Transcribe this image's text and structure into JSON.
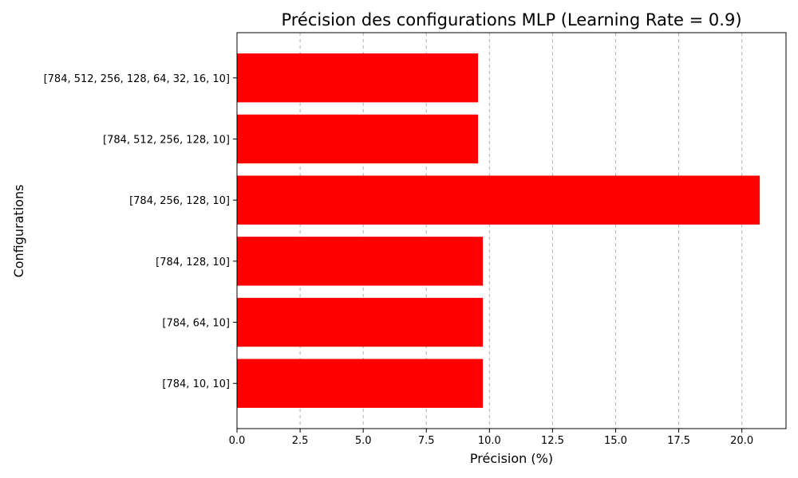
{
  "chart_data": {
    "type": "bar",
    "orientation": "horizontal",
    "title": "Précision des configurations MLP (Learning Rate = 0.9)",
    "xlabel": "Précision (%)",
    "ylabel": "Configurations",
    "categories": [
      "[784, 10, 10]",
      "[784, 64, 10]",
      "[784, 128, 10]",
      "[784, 256, 128, 10]",
      "[784, 512, 256, 128, 10]",
      "[784, 512, 256, 128, 64, 32, 16, 10]"
    ],
    "values": [
      9.74,
      9.74,
      9.74,
      20.71,
      9.55,
      9.55
    ],
    "xlim": [
      0,
      21.75
    ],
    "xticks": [
      0.0,
      2.5,
      5.0,
      7.5,
      10.0,
      12.5,
      15.0,
      17.5,
      20.0
    ],
    "xtick_labels": [
      "0.0",
      "2.5",
      "5.0",
      "7.5",
      "10.0",
      "12.5",
      "15.0",
      "17.5",
      "20.0"
    ],
    "grid": "x, dashed",
    "bar_color": "#ff0000"
  }
}
